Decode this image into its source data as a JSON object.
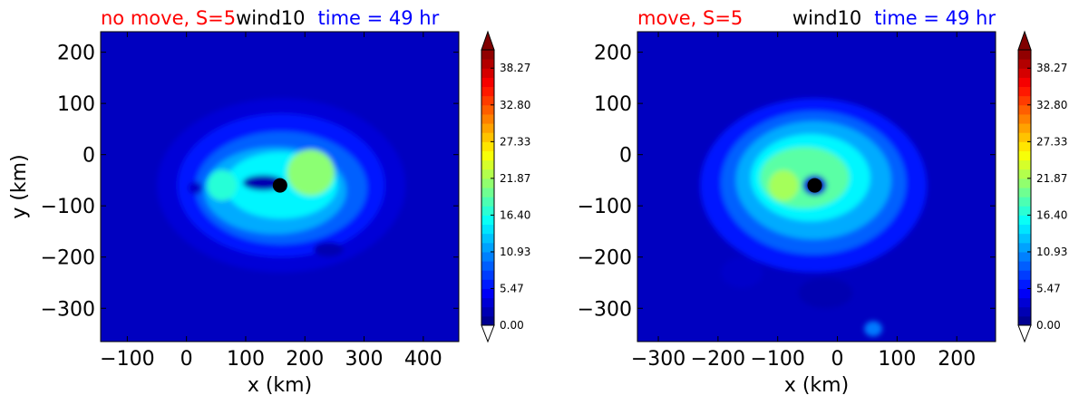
{
  "figure": {
    "panels": [
      {
        "title_left": "no move, S=5",
        "title_center": "wind10",
        "title_right": "time = 49 hr",
        "xlabel": "x (km)",
        "ylabel": "y (km)",
        "xticks": [
          "−100",
          "0",
          "100",
          "200",
          "300",
          "400"
        ],
        "yticks": [
          "200",
          "100",
          "0",
          "−100",
          "−200",
          "−300"
        ]
      },
      {
        "title_left": "move, S=5",
        "title_center": "wind10",
        "title_right": "time = 49 hr",
        "xlabel": "x (km)",
        "ylabel": "",
        "xticks": [
          "−300",
          "−200",
          "−100",
          "0",
          "100",
          "200"
        ],
        "yticks": [
          "200",
          "100",
          "0",
          "−100",
          "−200",
          "−300"
        ]
      }
    ],
    "colorbar_ticks": [
      "38.27",
      "32.80",
      "27.33",
      "21.87",
      "16.40",
      "10.93",
      "5.47",
      "0.00"
    ],
    "colors": {
      "title_left": "#ff0000",
      "title_center": "#000000",
      "title_right": "#0000ff",
      "marker": "#000000"
    }
  },
  "chart_data": [
    {
      "type": "heatmap",
      "variable": "wind10",
      "xlabel": "x (km)",
      "ylabel": "y (km)",
      "xlim": [
        -145,
        460
      ],
      "ylim": [
        -365,
        240
      ],
      "color_range": [
        0.0,
        41.0
      ],
      "colorbar_ticks": [
        0.0,
        5.47,
        10.93,
        16.4,
        21.87,
        27.33,
        32.8,
        38.27
      ],
      "center_marker": {
        "x": 158,
        "y": -60
      },
      "features": [
        {
          "x": 160,
          "y": -60,
          "rx": 210,
          "ry": 170,
          "value": 3.5
        },
        {
          "x": 160,
          "y": -60,
          "rx": 175,
          "ry": 140,
          "value": 6
        },
        {
          "x": 160,
          "y": -65,
          "rx": 145,
          "ry": 110,
          "value": 9
        },
        {
          "x": 150,
          "y": -70,
          "rx": 120,
          "ry": 85,
          "value": 12
        },
        {
          "x": 160,
          "y": -60,
          "rx": 95,
          "ry": 65,
          "value": 15
        },
        {
          "x": 210,
          "y": -35,
          "rx": 40,
          "ry": 45,
          "value": 21
        },
        {
          "x": 60,
          "y": -60,
          "rx": 25,
          "ry": 30,
          "value": 17
        },
        {
          "x": 130,
          "y": -55,
          "rx": 35,
          "ry": 15,
          "value": 2
        },
        {
          "x": 15,
          "y": -65,
          "rx": 12,
          "ry": 12,
          "value": 3
        },
        {
          "x": 240,
          "y": -185,
          "rx": 25,
          "ry": 14,
          "value": 2
        }
      ]
    },
    {
      "type": "heatmap",
      "variable": "wind10",
      "xlabel": "x (km)",
      "ylabel": "y (km)",
      "xlim": [
        -335,
        265
      ],
      "ylim": [
        -365,
        240
      ],
      "color_range": [
        0.0,
        41.0
      ],
      "colorbar_ticks": [
        0.0,
        5.47,
        10.93,
        16.4,
        21.87,
        27.33,
        32.8,
        38.27
      ],
      "center_marker": {
        "x": -38,
        "y": -60
      },
      "features": [
        {
          "x": -40,
          "y": -60,
          "rx": 190,
          "ry": 170,
          "value": 6
        },
        {
          "x": -40,
          "y": -55,
          "rx": 155,
          "ry": 140,
          "value": 9
        },
        {
          "x": -40,
          "y": -50,
          "rx": 130,
          "ry": 115,
          "value": 12
        },
        {
          "x": -45,
          "y": -45,
          "rx": 100,
          "ry": 85,
          "value": 15
        },
        {
          "x": -55,
          "y": -45,
          "rx": 75,
          "ry": 60,
          "value": 19
        },
        {
          "x": -90,
          "y": -60,
          "rx": 25,
          "ry": 30,
          "value": 22
        },
        {
          "x": -38,
          "y": -60,
          "rx": 20,
          "ry": 20,
          "value": 3
        },
        {
          "x": -160,
          "y": -230,
          "rx": 35,
          "ry": 30,
          "value": 3
        },
        {
          "x": -20,
          "y": -270,
          "rx": 45,
          "ry": 30,
          "value": 2
        },
        {
          "x": 60,
          "y": -340,
          "rx": 15,
          "ry": 15,
          "value": 10
        }
      ]
    }
  ]
}
